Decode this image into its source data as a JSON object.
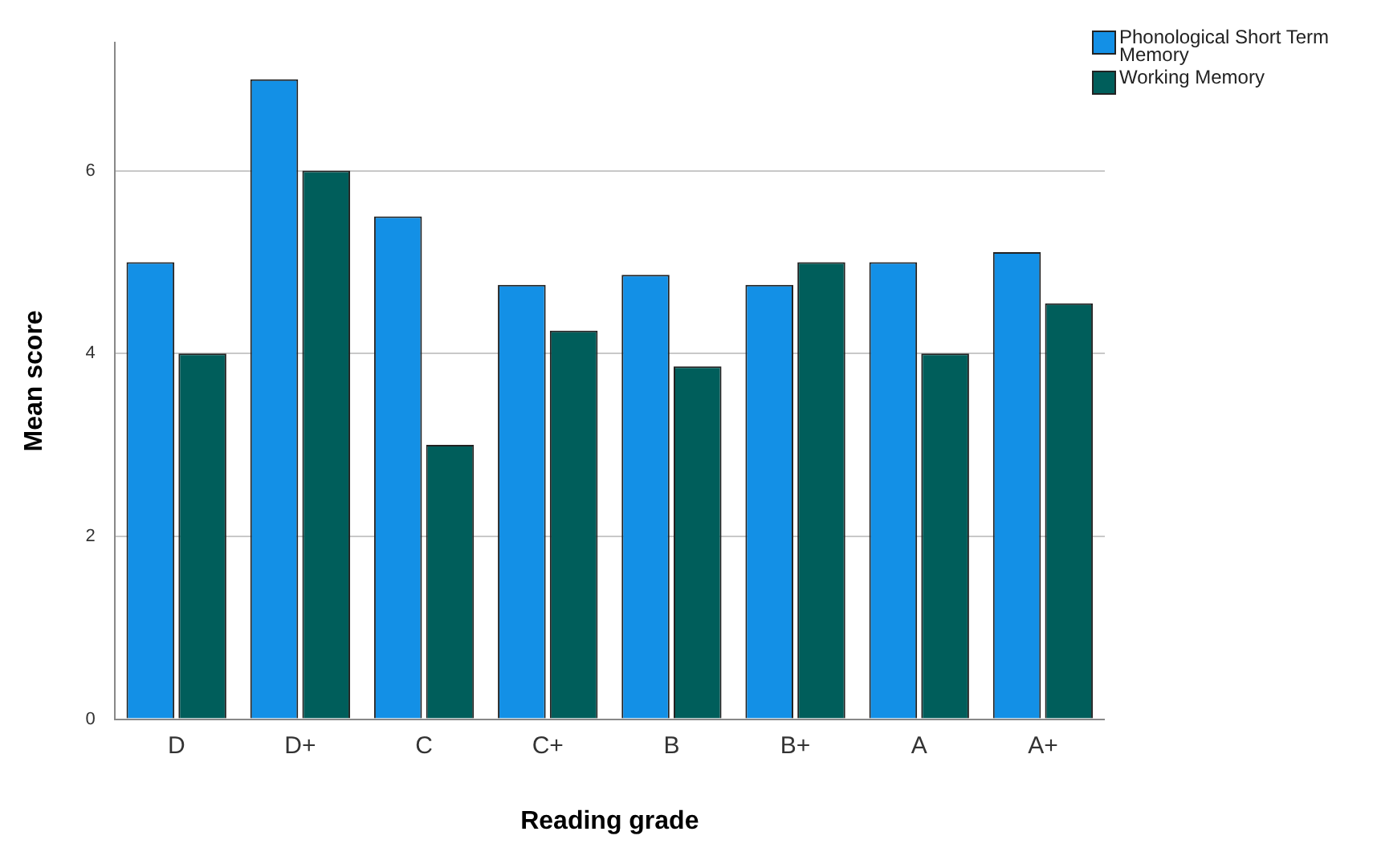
{
  "chart_data": {
    "type": "bar",
    "xlabel": "Reading grade",
    "ylabel": "Mean score",
    "categories": [
      "D",
      "D+",
      "C",
      "C+",
      "B",
      "B+",
      "A",
      "A+"
    ],
    "series": [
      {
        "name": "Phonological Short Term Memory",
        "color": "#1390e6",
        "values": [
          5.0,
          7.0,
          5.5,
          4.75,
          4.86,
          4.75,
          5.0,
          5.11
        ]
      },
      {
        "name": "Working Memory",
        "color": "#005e5b",
        "values": [
          4.0,
          6.0,
          3.0,
          4.25,
          3.86,
          5.0,
          4.0,
          4.55
        ]
      }
    ],
    "ylim": [
      0,
      7.4
    ],
    "yticks": [
      0,
      2,
      4,
      6
    ],
    "grid": "y",
    "legend": "top right"
  }
}
